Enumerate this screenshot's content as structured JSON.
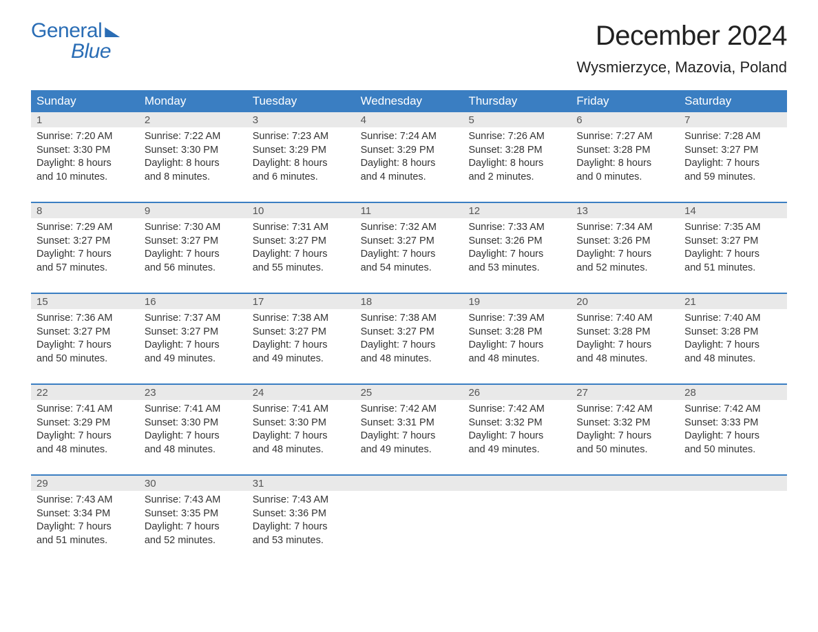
{
  "brand": {
    "word1": "General",
    "word2": "Blue",
    "color": "#2a6db5"
  },
  "title": "December 2024",
  "location": "Wysmierzyce, Mazovia, Poland",
  "day_headers": [
    "Sunday",
    "Monday",
    "Tuesday",
    "Wednesday",
    "Thursday",
    "Friday",
    "Saturday"
  ],
  "colors": {
    "header_bg": "#3a7ec2",
    "header_text": "#ffffff",
    "daynum_bg": "#e9e9e9",
    "daynum_text": "#555555",
    "body_text": "#333333",
    "week_border": "#3a7ec2",
    "page_bg": "#ffffff"
  },
  "fonts": {
    "title_size_pt": 40,
    "location_size_pt": 22,
    "header_size_pt": 17,
    "daynum_size_pt": 15,
    "cell_size_pt": 14.5
  },
  "weeks": [
    {
      "days": [
        {
          "num": "1",
          "sunrise": "Sunrise: 7:20 AM",
          "sunset": "Sunset: 3:30 PM",
          "dl1": "Daylight: 8 hours",
          "dl2": "and 10 minutes."
        },
        {
          "num": "2",
          "sunrise": "Sunrise: 7:22 AM",
          "sunset": "Sunset: 3:30 PM",
          "dl1": "Daylight: 8 hours",
          "dl2": "and 8 minutes."
        },
        {
          "num": "3",
          "sunrise": "Sunrise: 7:23 AM",
          "sunset": "Sunset: 3:29 PM",
          "dl1": "Daylight: 8 hours",
          "dl2": "and 6 minutes."
        },
        {
          "num": "4",
          "sunrise": "Sunrise: 7:24 AM",
          "sunset": "Sunset: 3:29 PM",
          "dl1": "Daylight: 8 hours",
          "dl2": "and 4 minutes."
        },
        {
          "num": "5",
          "sunrise": "Sunrise: 7:26 AM",
          "sunset": "Sunset: 3:28 PM",
          "dl1": "Daylight: 8 hours",
          "dl2": "and 2 minutes."
        },
        {
          "num": "6",
          "sunrise": "Sunrise: 7:27 AM",
          "sunset": "Sunset: 3:28 PM",
          "dl1": "Daylight: 8 hours",
          "dl2": "and 0 minutes."
        },
        {
          "num": "7",
          "sunrise": "Sunrise: 7:28 AM",
          "sunset": "Sunset: 3:27 PM",
          "dl1": "Daylight: 7 hours",
          "dl2": "and 59 minutes."
        }
      ]
    },
    {
      "days": [
        {
          "num": "8",
          "sunrise": "Sunrise: 7:29 AM",
          "sunset": "Sunset: 3:27 PM",
          "dl1": "Daylight: 7 hours",
          "dl2": "and 57 minutes."
        },
        {
          "num": "9",
          "sunrise": "Sunrise: 7:30 AM",
          "sunset": "Sunset: 3:27 PM",
          "dl1": "Daylight: 7 hours",
          "dl2": "and 56 minutes."
        },
        {
          "num": "10",
          "sunrise": "Sunrise: 7:31 AM",
          "sunset": "Sunset: 3:27 PM",
          "dl1": "Daylight: 7 hours",
          "dl2": "and 55 minutes."
        },
        {
          "num": "11",
          "sunrise": "Sunrise: 7:32 AM",
          "sunset": "Sunset: 3:27 PM",
          "dl1": "Daylight: 7 hours",
          "dl2": "and 54 minutes."
        },
        {
          "num": "12",
          "sunrise": "Sunrise: 7:33 AM",
          "sunset": "Sunset: 3:26 PM",
          "dl1": "Daylight: 7 hours",
          "dl2": "and 53 minutes."
        },
        {
          "num": "13",
          "sunrise": "Sunrise: 7:34 AM",
          "sunset": "Sunset: 3:26 PM",
          "dl1": "Daylight: 7 hours",
          "dl2": "and 52 minutes."
        },
        {
          "num": "14",
          "sunrise": "Sunrise: 7:35 AM",
          "sunset": "Sunset: 3:27 PM",
          "dl1": "Daylight: 7 hours",
          "dl2": "and 51 minutes."
        }
      ]
    },
    {
      "days": [
        {
          "num": "15",
          "sunrise": "Sunrise: 7:36 AM",
          "sunset": "Sunset: 3:27 PM",
          "dl1": "Daylight: 7 hours",
          "dl2": "and 50 minutes."
        },
        {
          "num": "16",
          "sunrise": "Sunrise: 7:37 AM",
          "sunset": "Sunset: 3:27 PM",
          "dl1": "Daylight: 7 hours",
          "dl2": "and 49 minutes."
        },
        {
          "num": "17",
          "sunrise": "Sunrise: 7:38 AM",
          "sunset": "Sunset: 3:27 PM",
          "dl1": "Daylight: 7 hours",
          "dl2": "and 49 minutes."
        },
        {
          "num": "18",
          "sunrise": "Sunrise: 7:38 AM",
          "sunset": "Sunset: 3:27 PM",
          "dl1": "Daylight: 7 hours",
          "dl2": "and 48 minutes."
        },
        {
          "num": "19",
          "sunrise": "Sunrise: 7:39 AM",
          "sunset": "Sunset: 3:28 PM",
          "dl1": "Daylight: 7 hours",
          "dl2": "and 48 minutes."
        },
        {
          "num": "20",
          "sunrise": "Sunrise: 7:40 AM",
          "sunset": "Sunset: 3:28 PM",
          "dl1": "Daylight: 7 hours",
          "dl2": "and 48 minutes."
        },
        {
          "num": "21",
          "sunrise": "Sunrise: 7:40 AM",
          "sunset": "Sunset: 3:28 PM",
          "dl1": "Daylight: 7 hours",
          "dl2": "and 48 minutes."
        }
      ]
    },
    {
      "days": [
        {
          "num": "22",
          "sunrise": "Sunrise: 7:41 AM",
          "sunset": "Sunset: 3:29 PM",
          "dl1": "Daylight: 7 hours",
          "dl2": "and 48 minutes."
        },
        {
          "num": "23",
          "sunrise": "Sunrise: 7:41 AM",
          "sunset": "Sunset: 3:30 PM",
          "dl1": "Daylight: 7 hours",
          "dl2": "and 48 minutes."
        },
        {
          "num": "24",
          "sunrise": "Sunrise: 7:41 AM",
          "sunset": "Sunset: 3:30 PM",
          "dl1": "Daylight: 7 hours",
          "dl2": "and 48 minutes."
        },
        {
          "num": "25",
          "sunrise": "Sunrise: 7:42 AM",
          "sunset": "Sunset: 3:31 PM",
          "dl1": "Daylight: 7 hours",
          "dl2": "and 49 minutes."
        },
        {
          "num": "26",
          "sunrise": "Sunrise: 7:42 AM",
          "sunset": "Sunset: 3:32 PM",
          "dl1": "Daylight: 7 hours",
          "dl2": "and 49 minutes."
        },
        {
          "num": "27",
          "sunrise": "Sunrise: 7:42 AM",
          "sunset": "Sunset: 3:32 PM",
          "dl1": "Daylight: 7 hours",
          "dl2": "and 50 minutes."
        },
        {
          "num": "28",
          "sunrise": "Sunrise: 7:42 AM",
          "sunset": "Sunset: 3:33 PM",
          "dl1": "Daylight: 7 hours",
          "dl2": "and 50 minutes."
        }
      ]
    },
    {
      "days": [
        {
          "num": "29",
          "sunrise": "Sunrise: 7:43 AM",
          "sunset": "Sunset: 3:34 PM",
          "dl1": "Daylight: 7 hours",
          "dl2": "and 51 minutes."
        },
        {
          "num": "30",
          "sunrise": "Sunrise: 7:43 AM",
          "sunset": "Sunset: 3:35 PM",
          "dl1": "Daylight: 7 hours",
          "dl2": "and 52 minutes."
        },
        {
          "num": "31",
          "sunrise": "Sunrise: 7:43 AM",
          "sunset": "Sunset: 3:36 PM",
          "dl1": "Daylight: 7 hours",
          "dl2": "and 53 minutes."
        },
        {
          "num": "",
          "sunrise": "",
          "sunset": "",
          "dl1": "",
          "dl2": ""
        },
        {
          "num": "",
          "sunrise": "",
          "sunset": "",
          "dl1": "",
          "dl2": ""
        },
        {
          "num": "",
          "sunrise": "",
          "sunset": "",
          "dl1": "",
          "dl2": ""
        },
        {
          "num": "",
          "sunrise": "",
          "sunset": "",
          "dl1": "",
          "dl2": ""
        }
      ]
    }
  ]
}
